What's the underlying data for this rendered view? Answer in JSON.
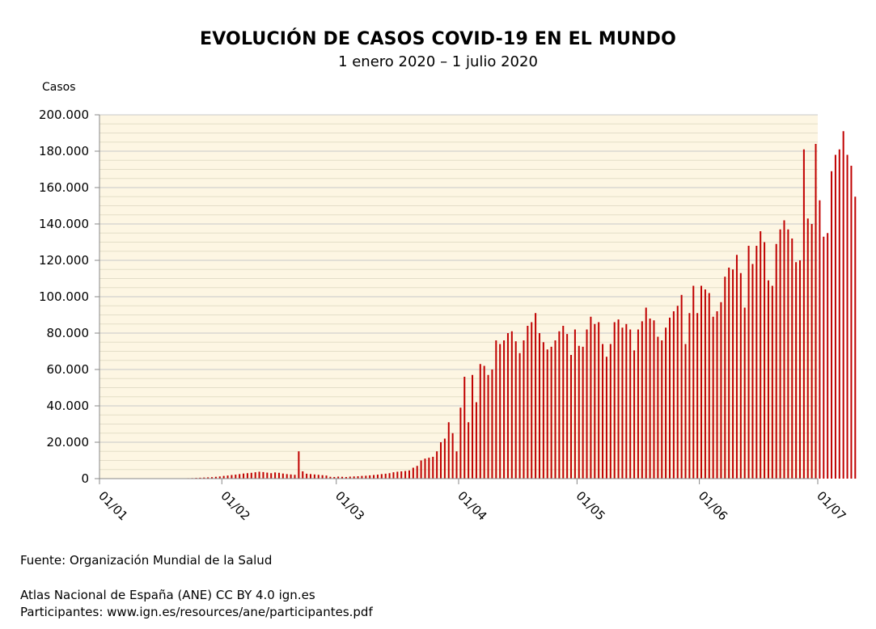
{
  "chart_data": {
    "type": "bar",
    "title": "EVOLUCIÓN DE CASOS COVID-19 EN EL MUNDO",
    "subtitle": "1 enero 2020 – 1 julio 2020",
    "ylabel": "Casos",
    "xlabel": "",
    "ylim": [
      0,
      200000
    ],
    "yticks": [
      0,
      20000,
      40000,
      60000,
      80000,
      100000,
      120000,
      140000,
      160000,
      180000,
      200000
    ],
    "ytick_labels": [
      "0",
      "20.000",
      "40.000",
      "60.000",
      "80.000",
      "100.000",
      "120.000",
      "140.000",
      "160.000",
      "180.000",
      "200.000"
    ],
    "x_range": [
      "2020-01-01",
      "2020-07-01"
    ],
    "xtick_dates": [
      "2020-01-01",
      "2020-02-01",
      "2020-03-01",
      "2020-04-01",
      "2020-05-01",
      "2020-06-01",
      "2020-07-01"
    ],
    "xtick_labels": [
      "01/01",
      "01/02",
      "01/03",
      "01/04",
      "01/05",
      "01/06",
      "01/07"
    ],
    "grid": true,
    "bar_color": "#c00000",
    "plot_background": "#fdf6e3",
    "series_start_date": "2020-01-01",
    "values": [
      0,
      0,
      0,
      0,
      0,
      0,
      0,
      0,
      0,
      0,
      0,
      0,
      0,
      0,
      0,
      0,
      0,
      0,
      0,
      0,
      100,
      150,
      250,
      300,
      400,
      500,
      600,
      700,
      800,
      1000,
      1200,
      1500,
      1700,
      2000,
      2200,
      2500,
      2800,
      3000,
      3200,
      3500,
      3800,
      3600,
      3300,
      3000,
      3400,
      3200,
      2800,
      2500,
      2300,
      2100,
      15000,
      4000,
      2700,
      2500,
      2300,
      2100,
      1900,
      1700,
      1000,
      900,
      1100,
      1000,
      900,
      1100,
      1200,
      1300,
      1500,
      1600,
      1800,
      2000,
      2200,
      2500,
      2700,
      3000,
      3500,
      3800,
      4000,
      4200,
      4500,
      6000,
      7000,
      10000,
      11000,
      11500,
      12000,
      15000,
      20000,
      22000,
      31000,
      25000,
      15000,
      39000,
      56000,
      31000,
      57000,
      42000,
      63000,
      62000,
      57000,
      60000,
      76000,
      74000,
      76000,
      80000,
      81000,
      75500,
      69000,
      76000,
      84000,
      86000,
      91000,
      80000,
      75000,
      71000,
      72500,
      76000,
      81000,
      84000,
      79500,
      68000,
      82000,
      73000,
      72500,
      82000,
      89000,
      85000,
      86000,
      74000,
      67000,
      74000,
      86000,
      87500,
      83000,
      85000,
      82000,
      70500,
      82000,
      86500,
      94000,
      88000,
      87000,
      78000,
      76000,
      83000,
      88500,
      92000,
      95000,
      101000,
      74000,
      91000,
      106000,
      91000,
      106000,
      104000,
      102000,
      89000,
      92000,
      97000,
      111000,
      116000,
      115000,
      123000,
      113000,
      94000,
      128000,
      118000,
      128000,
      136000,
      130000,
      109000,
      106000,
      129000,
      137000,
      142000,
      137000,
      132000,
      119000,
      120000,
      181000,
      143000,
      140000,
      184000,
      153000,
      133000,
      135000,
      169000,
      178000,
      181000,
      191000,
      178000,
      172000,
      155000
    ]
  },
  "footer": {
    "source": "Fuente: Organización Mundial de la Salud",
    "atlas": "Atlas Nacional de España (ANE) CC BY 4.0 ign.es",
    "participants": "Participantes: www.ign.es/resources/ane/participantes.pdf"
  }
}
